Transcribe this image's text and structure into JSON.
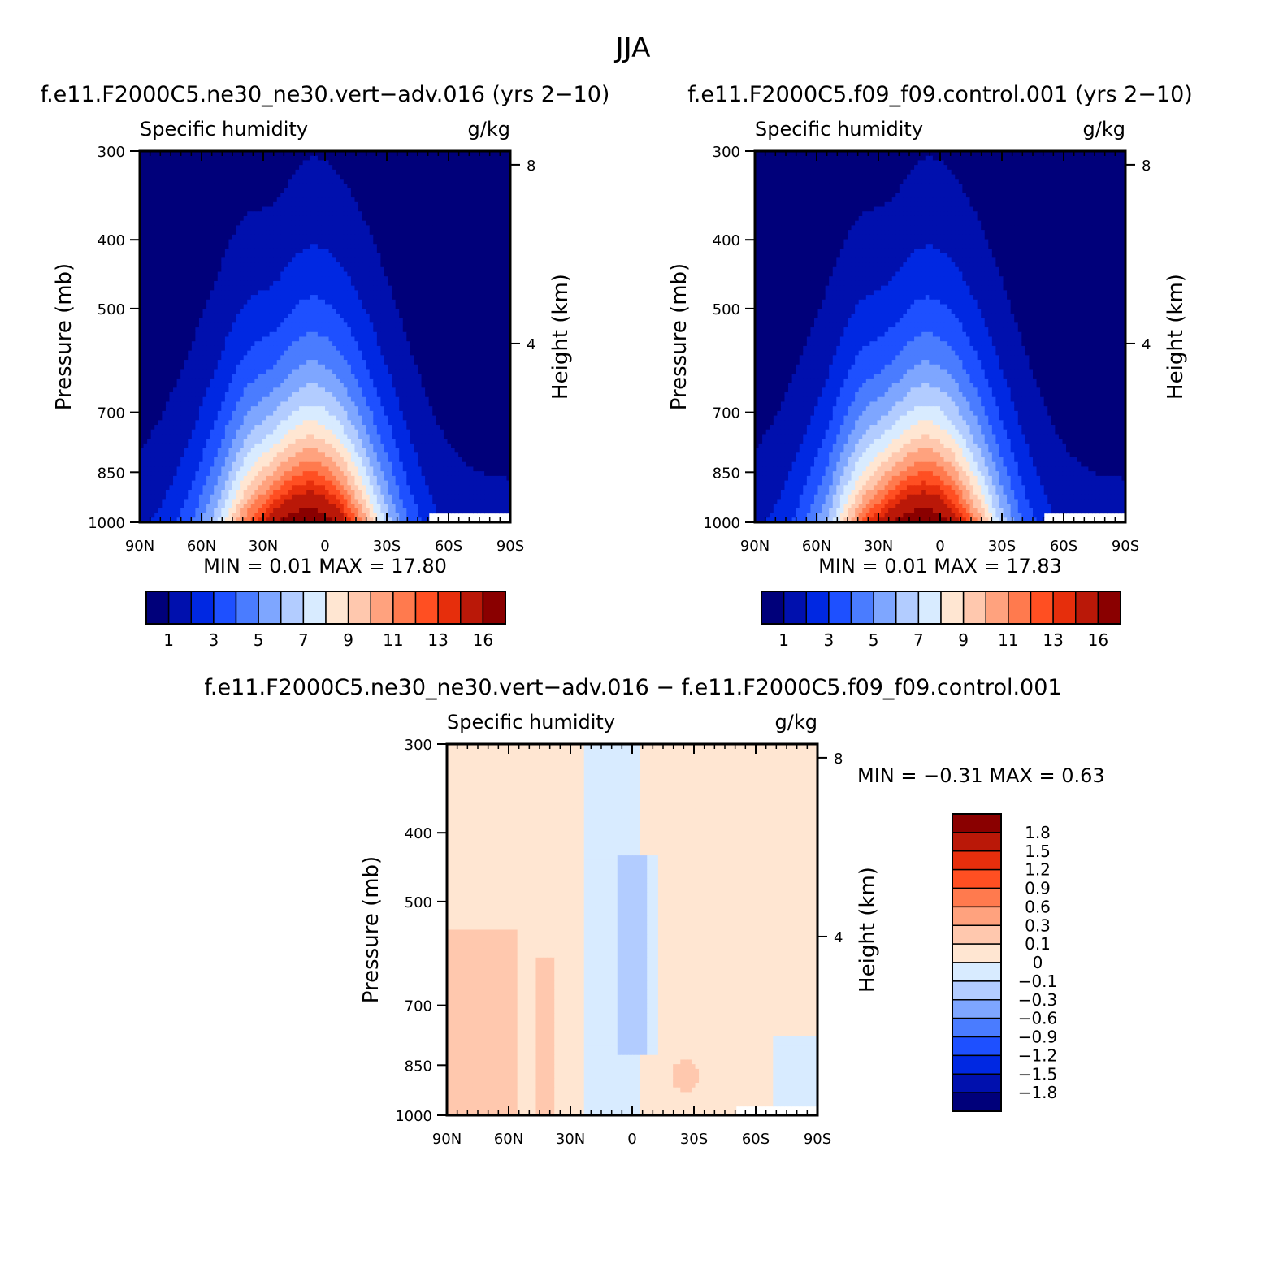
{
  "figure": {
    "title": "JJA"
  },
  "chart_data": [
    {
      "type": "heatmap",
      "panel": "case",
      "title": "f.e11.F2000C5.ne30_ne30.vert−adv.016 (yrs 2−10)",
      "variable": "Specific humidity",
      "units": "g/kg",
      "ylabel": "Pressure (mb)",
      "ylabel_right": "Height (km)",
      "x_ticks": [
        "90N",
        "60N",
        "30N",
        "0",
        "30S",
        "60S",
        "90S"
      ],
      "y_ticks": [
        "300",
        "400",
        "500",
        "700",
        "850",
        "1000"
      ],
      "y_ticks_right": [
        "8",
        "4"
      ],
      "ylim": [
        1000,
        300
      ],
      "xlim": [
        90,
        -90
      ],
      "stats_text": "MIN =     0.01   MAX =    17.80",
      "min": 0.01,
      "max": 17.8,
      "colorbar": {
        "orientation": "horizontal",
        "labels": [
          "1",
          "3",
          "5",
          "7",
          "9",
          "11",
          "13",
          "16"
        ],
        "colors": [
          "#00007a",
          "#0010ae",
          "#0028e2",
          "#1e50ff",
          "#4a7cff",
          "#7ea6ff",
          "#b2ccff",
          "#d8ebff",
          "#ffe6d2",
          "#ffc8ae",
          "#ffa27e",
          "#ff7a4e",
          "#ff4f22",
          "#e62e0c",
          "#ba1808",
          "#8a0000"
        ]
      },
      "structure": "Moisture maximum near the surface around 10N (peak 17.80 g/kg), decreasing upward and poleward; values below 1 g/kg above roughly 500-700 mb; blank region near the surface from 50S to 90S (topography)."
    },
    {
      "type": "heatmap",
      "panel": "control",
      "title": "f.e11.F2000C5.f09_f09.control.001 (yrs 2−10)",
      "variable": "Specific humidity",
      "units": "g/kg",
      "ylabel": "Pressure (mb)",
      "ylabel_right": "Height (km)",
      "x_ticks": [
        "90N",
        "60N",
        "30N",
        "0",
        "30S",
        "60S",
        "90S"
      ],
      "y_ticks": [
        "300",
        "400",
        "500",
        "700",
        "850",
        "1000"
      ],
      "y_ticks_right": [
        "8",
        "4"
      ],
      "ylim": [
        1000,
        300
      ],
      "xlim": [
        90,
        -90
      ],
      "stats_text": "MIN =     0.01   MAX =    17.83",
      "min": 0.01,
      "max": 17.83,
      "colorbar": {
        "orientation": "horizontal",
        "labels": [
          "1",
          "3",
          "5",
          "7",
          "9",
          "11",
          "13",
          "16"
        ],
        "colors": [
          "#00007a",
          "#0010ae",
          "#0028e2",
          "#1e50ff",
          "#4a7cff",
          "#7ea6ff",
          "#b2ccff",
          "#d8ebff",
          "#ffe6d2",
          "#ffc8ae",
          "#ffa27e",
          "#ff7a4e",
          "#ff4f22",
          "#e62e0c",
          "#ba1808",
          "#8a0000"
        ]
      }
    },
    {
      "type": "heatmap",
      "panel": "difference",
      "title": "f.e11.F2000C5.ne30_ne30.vert−adv.016 − f.e11.F2000C5.f09_f09.control.001",
      "variable": "Specific humidity",
      "units": "g/kg",
      "ylabel": "Pressure (mb)",
      "ylabel_right": "Height (km)",
      "x_ticks": [
        "90N",
        "60N",
        "30N",
        "0",
        "30S",
        "60S",
        "90S"
      ],
      "y_ticks": [
        "300",
        "400",
        "500",
        "700",
        "850",
        "1000"
      ],
      "y_ticks_right": [
        "8",
        "4"
      ],
      "ylim": [
        1000,
        300
      ],
      "xlim": [
        90,
        -90
      ],
      "stats_text": "MIN =   −0.31   MAX =     0.63",
      "min": -0.31,
      "max": 0.63,
      "colorbar": {
        "orientation": "vertical",
        "labels": [
          "1.8",
          "1.5",
          "1.2",
          "0.9",
          "0.6",
          "0.3",
          "0.1",
          "0",
          "−0.1",
          "−0.3",
          "−0.6",
          "−0.9",
          "−1.2",
          "−1.5",
          "−1.8"
        ],
        "colors": [
          "#8a0000",
          "#ba1808",
          "#e62e0c",
          "#ff4f22",
          "#ff7a4e",
          "#ffa27e",
          "#ffc8ae",
          "#ffe6d2",
          "#d8ebff",
          "#b2ccff",
          "#7ea6ff",
          "#4a7cff",
          "#1e50ff",
          "#0028e2",
          "#0010ae",
          "#00007a"
        ]
      },
      "structure": "Mostly small positive differences (0 to 0.1) with patches of 0.1-0.3 near 60N-90N below 500 mb and 20S-30S near 850 mb; negative differences (0 to -0.3) between about 30N and 10S through the troposphere."
    }
  ]
}
